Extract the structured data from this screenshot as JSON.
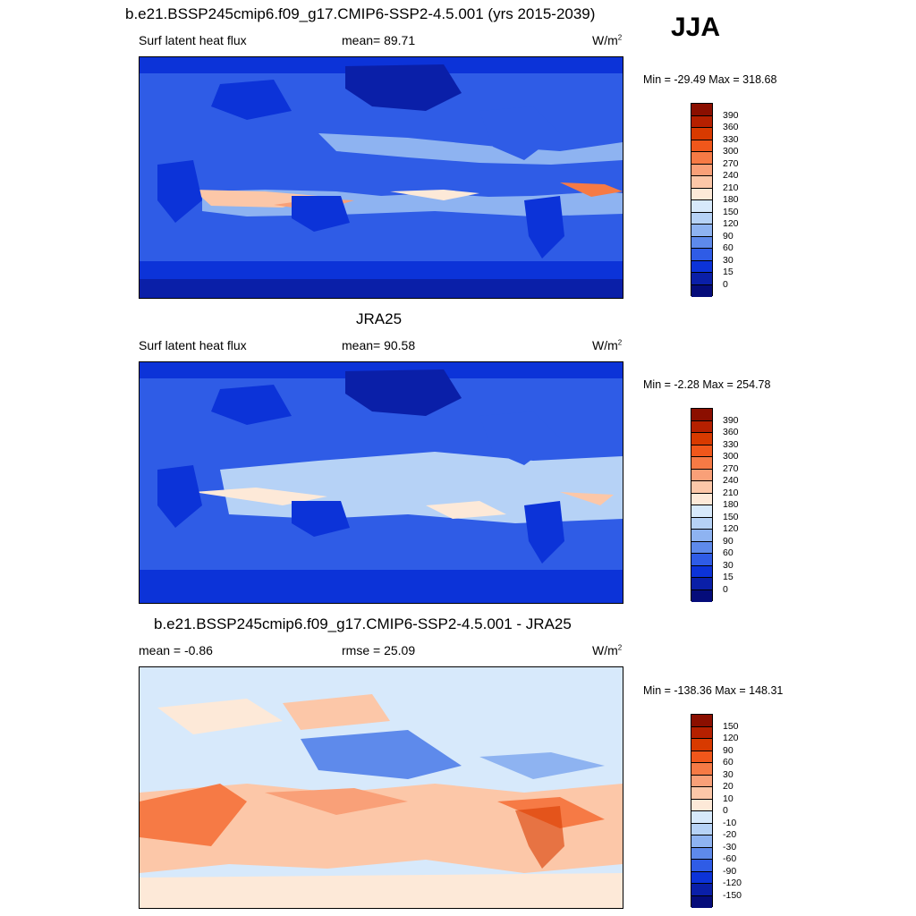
{
  "season": "JJA",
  "panels": [
    {
      "title": "b.e21.BSSP245cmip6.f09_g17.CMIP6-SSP2-4.5.001 (yrs 2015-2039)",
      "left": "Surf latent heat flux",
      "middle": "mean=  89.71",
      "units_base": "W/m",
      "units_exp": "2",
      "minmax": "Min = -29.49 Max = 318.68",
      "colorbar": {
        "labels": [
          "390",
          "360",
          "330",
          "300",
          "270",
          "240",
          "210",
          "180",
          "150",
          "120",
          "90",
          "60",
          "30",
          "15",
          "0"
        ],
        "colors": [
          "#8b0f00",
          "#b52000",
          "#d83a00",
          "#f0571b",
          "#f67a45",
          "#f9a078",
          "#fcc7a8",
          "#fde9d8",
          "#d7e9fb",
          "#b6d2f6",
          "#8eb3f1",
          "#5e8aeb",
          "#2f5ce6",
          "#0c33d8",
          "#0a1fa8",
          "#050c7a"
        ]
      }
    },
    {
      "title": "JRA25",
      "left": "Surf latent heat flux",
      "middle": "mean=  90.58",
      "units_base": "W/m",
      "units_exp": "2",
      "minmax": "Min =  -2.28 Max = 254.78",
      "colorbar": {
        "labels": [
          "390",
          "360",
          "330",
          "300",
          "270",
          "240",
          "210",
          "180",
          "150",
          "120",
          "90",
          "60",
          "30",
          "15",
          "0"
        ],
        "colors": [
          "#8b0f00",
          "#b52000",
          "#d83a00",
          "#f0571b",
          "#f67a45",
          "#f9a078",
          "#fcc7a8",
          "#fde9d8",
          "#d7e9fb",
          "#b6d2f6",
          "#8eb3f1",
          "#5e8aeb",
          "#2f5ce6",
          "#0c33d8",
          "#0a1fa8",
          "#050c7a"
        ]
      }
    },
    {
      "title": "b.e21.BSSP245cmip6.f09_g17.CMIP6-SSP2-4.5.001 - JRA25",
      "left": "mean =  -0.86",
      "middle": "rmse =  25.09",
      "units_base": "W/m",
      "units_exp": "2",
      "minmax": "Min = -138.36 Max = 148.31",
      "colorbar": {
        "labels": [
          "150",
          "120",
          "90",
          "60",
          "30",
          "20",
          "10",
          "0",
          "-10",
          "-20",
          "-30",
          "-60",
          "-90",
          "-120",
          "-150"
        ],
        "colors": [
          "#8b0f00",
          "#b52000",
          "#d83a00",
          "#f0571b",
          "#f67a45",
          "#f9a078",
          "#fcc7a8",
          "#fde9d8",
          "#d7e9fb",
          "#b6d2f6",
          "#8eb3f1",
          "#5e8aeb",
          "#2f5ce6",
          "#0c33d8",
          "#0a1fa8",
          "#050c7a"
        ]
      }
    }
  ]
}
